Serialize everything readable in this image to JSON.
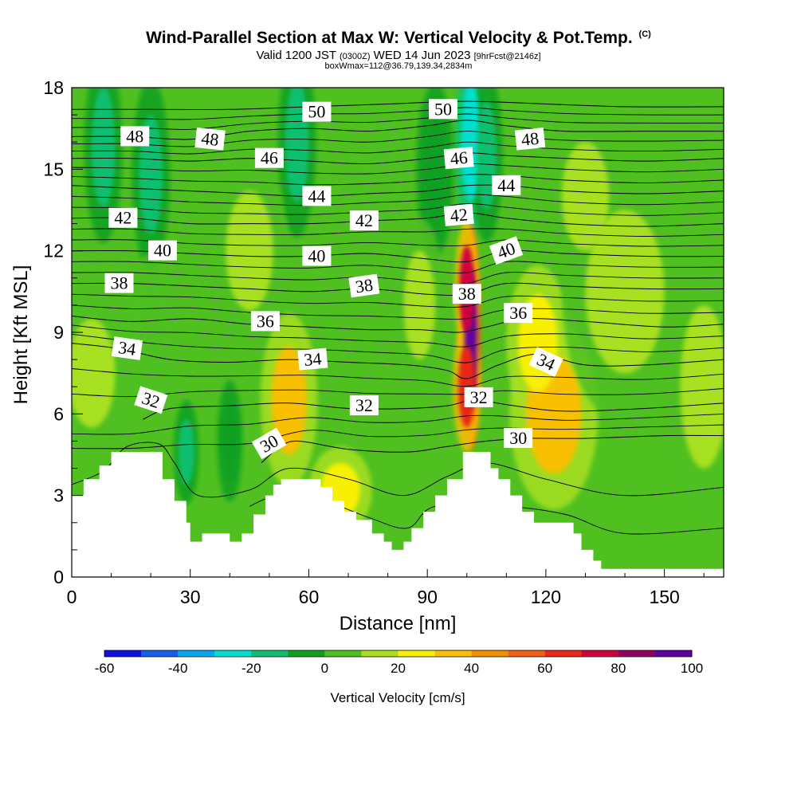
{
  "header": {
    "title": "Wind-Parallel Section at Max W: Vertical Velocity & Pot.Temp.",
    "copyright": "(C)",
    "valid_prefix": "Valid 1200 JST",
    "valid_utc": "(0300Z)",
    "valid_date": "WED 14 Jun 2023",
    "forecast": "[9hrFcst@2146z]",
    "box_info": "boxWmax=112@36.79,139.34,2834m"
  },
  "chart_data": {
    "type": "heatmap",
    "xlabel": "Distance [nm]",
    "ylabel": "Height [Kft MSL]",
    "xlim": [
      0,
      165
    ],
    "ylim": [
      0,
      18
    ],
    "x_ticks": [
      "0",
      "30",
      "60",
      "90",
      "120",
      "150"
    ],
    "y_ticks": [
      "0",
      "3",
      "6",
      "9",
      "12",
      "15",
      "18"
    ],
    "colorbar": {
      "title": "Vertical Velocity [cm/s]",
      "range": [
        -60,
        100
      ],
      "step": 10,
      "tick_labels": [
        "-60",
        "-40",
        "-20",
        "0",
        "20",
        "40",
        "60",
        "80",
        "100"
      ],
      "colors": [
        "#1010e0",
        "#1560e8",
        "#00a8f0",
        "#00e0d0",
        "#10c070",
        "#10a020",
        "#50c020",
        "#a8e020",
        "#f8f000",
        "#f8c000",
        "#f09000",
        "#f06018",
        "#e82818",
        "#d00040",
        "#900060",
        "#6000a0"
      ]
    },
    "terrain_kft": [
      [
        0,
        3.0
      ],
      [
        3,
        3.6
      ],
      [
        7,
        4.1
      ],
      [
        10,
        4.6
      ],
      [
        15,
        4.6
      ],
      [
        20,
        4.6
      ],
      [
        23,
        3.6
      ],
      [
        26,
        2.8
      ],
      [
        29,
        2.0
      ],
      [
        30,
        1.3
      ],
      [
        33,
        1.6
      ],
      [
        38,
        1.6
      ],
      [
        40,
        1.3
      ],
      [
        43,
        1.6
      ],
      [
        46,
        2.3
      ],
      [
        49,
        3.0
      ],
      [
        51,
        3.4
      ],
      [
        53,
        3.6
      ],
      [
        58,
        3.6
      ],
      [
        61,
        3.6
      ],
      [
        63,
        3.3
      ],
      [
        66,
        2.8
      ],
      [
        69,
        2.4
      ],
      [
        72,
        2.1
      ],
      [
        76,
        1.6
      ],
      [
        79,
        1.3
      ],
      [
        81,
        1.0
      ],
      [
        84,
        1.3
      ],
      [
        86,
        1.8
      ],
      [
        89,
        2.4
      ],
      [
        92,
        3.0
      ],
      [
        95,
        3.6
      ],
      [
        99,
        4.6
      ],
      [
        103,
        4.6
      ],
      [
        106,
        4.0
      ],
      [
        108,
        3.6
      ],
      [
        111,
        3.0
      ],
      [
        114,
        2.4
      ],
      [
        117,
        2.0
      ],
      [
        125,
        2.0
      ],
      [
        127,
        1.6
      ],
      [
        129,
        1.0
      ],
      [
        132,
        0.6
      ],
      [
        134,
        0.3
      ],
      [
        165,
        0.3
      ]
    ],
    "vertical_velocity_regions": [
      {
        "x": 8,
        "y": 15.8,
        "sx": 3,
        "sy": 2.2,
        "value": -18
      },
      {
        "x": 20,
        "y": 14.8,
        "sx": 3,
        "sy": 2.2,
        "value": -12
      },
      {
        "x": 57,
        "y": 16.0,
        "sx": 3,
        "sy": 2.2,
        "value": -15
      },
      {
        "x": 101,
        "y": 16.0,
        "sx": 2.5,
        "sy": 2.2,
        "value": -25
      },
      {
        "x": 105,
        "y": 15.5,
        "sx": 2.5,
        "sy": 2.0,
        "value": -15
      },
      {
        "x": 92,
        "y": 15.0,
        "sx": 3,
        "sy": 2.0,
        "value": -10
      },
      {
        "x": 29,
        "y": 4.6,
        "sx": 2,
        "sy": 1.2,
        "value": -12
      },
      {
        "x": 40,
        "y": 5.0,
        "sx": 2,
        "sy": 1.4,
        "value": -8
      },
      {
        "x": 101,
        "y": 8.8,
        "sx": 1.6,
        "sy": 2.6,
        "value": 100
      },
      {
        "x": 100,
        "y": 10.6,
        "sx": 1.9,
        "sy": 1.6,
        "value": 72
      },
      {
        "x": 100,
        "y": 7.0,
        "sx": 2.2,
        "sy": 1.5,
        "value": 62
      },
      {
        "x": 55,
        "y": 6.5,
        "sx": 4.5,
        "sy": 2.0,
        "value": 32
      },
      {
        "x": 68,
        "y": 3.2,
        "sx": 5,
        "sy": 1.0,
        "value": 25
      },
      {
        "x": 122,
        "y": 6.0,
        "sx": 7,
        "sy": 2.2,
        "value": 34
      },
      {
        "x": 118,
        "y": 8.6,
        "sx": 5,
        "sy": 1.8,
        "value": 22
      },
      {
        "x": 88,
        "y": 10.0,
        "sx": 4,
        "sy": 2.0,
        "value": 14
      },
      {
        "x": 45,
        "y": 12.0,
        "sx": 6,
        "sy": 2.2,
        "value": 12
      },
      {
        "x": 140,
        "y": 10.5,
        "sx": 10,
        "sy": 3.0,
        "value": 12
      },
      {
        "x": 5,
        "y": 7.5,
        "sx": 6,
        "sy": 2.0,
        "value": 16
      },
      {
        "x": 160,
        "y": 7.0,
        "sx": 6,
        "sy": 3.0,
        "value": 14
      },
      {
        "x": 78,
        "y": 14.6,
        "sx": 5,
        "sy": 1.6,
        "value": 8
      },
      {
        "x": 130,
        "y": 14.0,
        "sx": 6,
        "sy": 2.0,
        "value": 10
      },
      {
        "x": 20,
        "y": 9.0,
        "sx": 5,
        "sy": 1.8,
        "value": 8
      }
    ],
    "potential_temperature_isotherms": [
      {
        "label": "30",
        "points": [
          [
            48,
            4.2
          ],
          [
            52,
            4.7
          ],
          [
            57,
            5.0
          ],
          [
            70,
            4.7
          ],
          [
            85,
            4.6
          ],
          [
            95,
            4.8
          ],
          [
            105,
            5.0
          ],
          [
            115,
            5.1
          ],
          [
            130,
            5.1
          ],
          [
            150,
            5.2
          ],
          [
            165,
            5.2
          ]
        ]
      },
      {
        "label": "32",
        "points": [
          [
            18,
            5.8
          ],
          [
            25,
            6.2
          ],
          [
            40,
            6.3
          ],
          [
            55,
            6.4
          ],
          [
            70,
            6.2
          ],
          [
            85,
            6.2
          ],
          [
            95,
            6.3
          ],
          [
            102,
            6.5
          ],
          [
            112,
            6.3
          ],
          [
            125,
            6.1
          ],
          [
            145,
            6.2
          ],
          [
            165,
            6.4
          ]
        ]
      },
      {
        "label": "34",
        "points": [
          [
            0,
            8.6
          ],
          [
            12,
            8.4
          ],
          [
            25,
            8.0
          ],
          [
            40,
            7.9
          ],
          [
            55,
            8.0
          ],
          [
            70,
            7.9
          ],
          [
            85,
            7.8
          ],
          [
            95,
            7.6
          ],
          [
            100,
            7.3
          ],
          [
            108,
            7.8
          ],
          [
            118,
            8.2
          ],
          [
            130,
            7.8
          ],
          [
            145,
            7.8
          ],
          [
            165,
            8.0
          ]
        ]
      },
      {
        "label": "36",
        "points": [
          [
            0,
            9.6
          ],
          [
            15,
            9.4
          ],
          [
            30,
            9.5
          ],
          [
            45,
            9.3
          ],
          [
            60,
            9.2
          ],
          [
            75,
            9.1
          ],
          [
            88,
            9.1
          ],
          [
            98,
            9.0
          ],
          [
            105,
            9.2
          ],
          [
            115,
            9.5
          ],
          [
            130,
            9.4
          ],
          [
            150,
            9.2
          ],
          [
            165,
            9.3
          ]
        ]
      },
      {
        "label": "38",
        "points": [
          [
            0,
            10.8
          ],
          [
            15,
            10.8
          ],
          [
            30,
            10.7
          ],
          [
            45,
            10.6
          ],
          [
            60,
            10.5
          ],
          [
            75,
            10.6
          ],
          [
            90,
            10.4
          ],
          [
            100,
            10.4
          ],
          [
            110,
            10.8
          ],
          [
            125,
            10.7
          ],
          [
            145,
            10.6
          ],
          [
            165,
            10.6
          ]
        ]
      },
      {
        "label": "40",
        "points": [
          [
            0,
            12.0
          ],
          [
            15,
            12.0
          ],
          [
            30,
            11.9
          ],
          [
            45,
            11.8
          ],
          [
            60,
            11.8
          ],
          [
            75,
            11.9
          ],
          [
            90,
            11.7
          ],
          [
            100,
            11.6
          ],
          [
            110,
            12.0
          ],
          [
            125,
            11.9
          ],
          [
            145,
            11.8
          ],
          [
            165,
            11.8
          ]
        ]
      },
      {
        "label": "42",
        "points": [
          [
            0,
            13.2
          ],
          [
            15,
            13.2
          ],
          [
            30,
            13.0
          ],
          [
            45,
            13.0
          ],
          [
            60,
            13.0
          ],
          [
            75,
            13.1
          ],
          [
            90,
            13.2
          ],
          [
            100,
            13.4
          ],
          [
            110,
            13.2
          ],
          [
            125,
            13.0
          ],
          [
            145,
            12.9
          ],
          [
            165,
            13.0
          ]
        ]
      },
      {
        "label": "44",
        "points": [
          [
            0,
            14.4
          ],
          [
            15,
            14.3
          ],
          [
            30,
            14.2
          ],
          [
            45,
            14.1
          ],
          [
            60,
            14.0
          ],
          [
            75,
            14.1
          ],
          [
            90,
            14.2
          ],
          [
            100,
            14.4
          ],
          [
            110,
            14.4
          ],
          [
            125,
            14.2
          ],
          [
            145,
            14.1
          ],
          [
            165,
            14.2
          ]
        ]
      },
      {
        "label": "46",
        "points": [
          [
            0,
            15.4
          ],
          [
            15,
            15.4
          ],
          [
            30,
            15.3
          ],
          [
            45,
            15.4
          ],
          [
            60,
            15.3
          ],
          [
            75,
            15.2
          ],
          [
            90,
            15.4
          ],
          [
            100,
            15.6
          ],
          [
            110,
            15.5
          ],
          [
            125,
            15.4
          ],
          [
            145,
            15.3
          ],
          [
            165,
            15.4
          ]
        ]
      },
      {
        "label": "48",
        "points": [
          [
            0,
            16.2
          ],
          [
            15,
            16.2
          ],
          [
            30,
            16.1
          ],
          [
            45,
            16.4
          ],
          [
            60,
            16.5
          ],
          [
            75,
            16.4
          ],
          [
            90,
            16.6
          ],
          [
            100,
            16.8
          ],
          [
            110,
            16.6
          ],
          [
            125,
            16.4
          ],
          [
            145,
            16.4
          ],
          [
            165,
            16.4
          ]
        ]
      },
      {
        "label": "50",
        "points": [
          [
            0,
            17.2
          ],
          [
            20,
            17.2
          ],
          [
            40,
            17.2
          ],
          [
            60,
            17.3
          ],
          [
            80,
            17.4
          ],
          [
            100,
            17.5
          ],
          [
            120,
            17.4
          ],
          [
            140,
            17.3
          ],
          [
            165,
            17.3
          ]
        ]
      }
    ],
    "contour_labels": [
      {
        "text": "50",
        "x": 62,
        "y": 17.1,
        "angle": 0
      },
      {
        "text": "50",
        "x": 94,
        "y": 17.2,
        "angle": 0
      },
      {
        "text": "48",
        "x": 16,
        "y": 16.2,
        "angle": 0
      },
      {
        "text": "48",
        "x": 35,
        "y": 16.1,
        "angle": 6
      },
      {
        "text": "48",
        "x": 116,
        "y": 16.1,
        "angle": -6
      },
      {
        "text": "46",
        "x": 50,
        "y": 15.4,
        "angle": 0
      },
      {
        "text": "46",
        "x": 98,
        "y": 15.4,
        "angle": -5
      },
      {
        "text": "44",
        "x": 62,
        "y": 14.0,
        "angle": 0
      },
      {
        "text": "44",
        "x": 110,
        "y": 14.4,
        "angle": 0
      },
      {
        "text": "42",
        "x": 13,
        "y": 13.2,
        "angle": 0
      },
      {
        "text": "42",
        "x": 74,
        "y": 13.1,
        "angle": 0
      },
      {
        "text": "42",
        "x": 98,
        "y": 13.3,
        "angle": -5
      },
      {
        "text": "40",
        "x": 23,
        "y": 12.0,
        "angle": 0
      },
      {
        "text": "40",
        "x": 62,
        "y": 11.8,
        "angle": 0
      },
      {
        "text": "40",
        "x": 110,
        "y": 12.0,
        "angle": -20
      },
      {
        "text": "38",
        "x": 12,
        "y": 10.8,
        "angle": 0
      },
      {
        "text": "38",
        "x": 74,
        "y": 10.7,
        "angle": -8
      },
      {
        "text": "38",
        "x": 100,
        "y": 10.4,
        "angle": 0
      },
      {
        "text": "36",
        "x": 49,
        "y": 9.4,
        "angle": 0
      },
      {
        "text": "36",
        "x": 113,
        "y": 9.7,
        "angle": 0
      },
      {
        "text": "34",
        "x": 14,
        "y": 8.4,
        "angle": 8
      },
      {
        "text": "34",
        "x": 61,
        "y": 8.0,
        "angle": -5
      },
      {
        "text": "34",
        "x": 120,
        "y": 7.9,
        "angle": 25
      },
      {
        "text": "32",
        "x": 20,
        "y": 6.5,
        "angle": 18
      },
      {
        "text": "32",
        "x": 74,
        "y": 6.3,
        "angle": 0
      },
      {
        "text": "32",
        "x": 103,
        "y": 6.6,
        "angle": 0
      },
      {
        "text": "30",
        "x": 50,
        "y": 4.9,
        "angle": -30
      },
      {
        "text": "30",
        "x": 113,
        "y": 5.1,
        "angle": 0
      }
    ]
  }
}
